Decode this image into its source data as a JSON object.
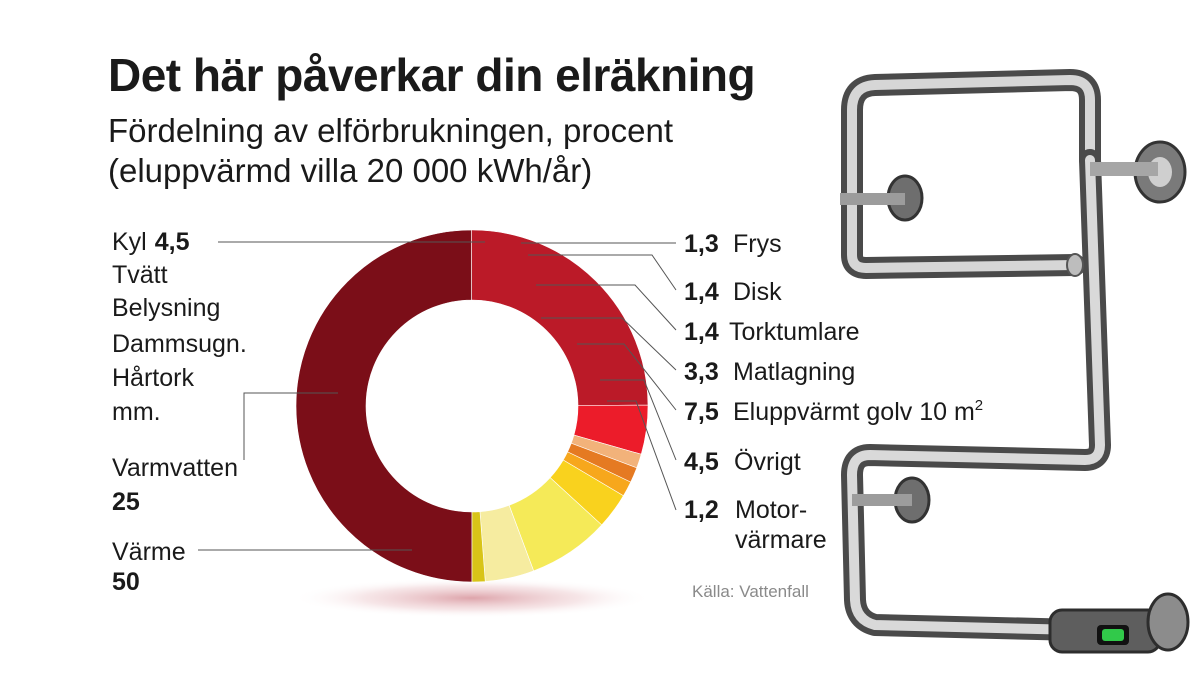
{
  "title": "Det här påverkar din elräkning",
  "subtitle_line1": "Fördelning av elförbrukningen, procent",
  "subtitle_line2": "(eluppvärmd villa 20 000 kWh/år)",
  "source": "Källa: Vattenfall",
  "colors": {
    "Värme": "#7b0e18",
    "Varmvatten": "#bb1a28",
    "Kyl": "#ec1c2a",
    "Frys": "#f2b27a",
    "Disk": "#e57a22",
    "Torktumlare": "#f7a71c",
    "Matlagning": "#f9d21e",
    "Eluppvärmt golv": "#f5ea58",
    "Övrigt": "#f6eca0",
    "Motorvärmare": "#d8c418"
  },
  "chart_data": {
    "type": "pie",
    "donut": true,
    "unit": "procent",
    "slices": [
      {
        "label": "Värme",
        "value": 50
      },
      {
        "label": "Varmvatten",
        "value": 25
      },
      {
        "label": "Kyl",
        "value": 4.5
      },
      {
        "label": "Frys",
        "value": 1.3
      },
      {
        "label": "Disk",
        "value": 1.4
      },
      {
        "label": "Torktumlare",
        "value": 1.4
      },
      {
        "label": "Matlagning",
        "value": 3.3
      },
      {
        "label": "Eluppvärmt golv 10 m²",
        "value": 7.5
      },
      {
        "label": "Övrigt",
        "value": 4.5
      },
      {
        "label": "Motorvärmare",
        "value": 1.2
      }
    ]
  },
  "labels": {
    "kyl": {
      "name": "Kyl",
      "value": "4,5"
    },
    "kyl_extra": [
      "Tvätt",
      "Belysning",
      "Dammsugn.",
      "Hårtork",
      "mm."
    ],
    "varmvatten": {
      "name": "Varmvatten",
      "value": "25"
    },
    "varme": {
      "name": "Värme",
      "value": "50"
    },
    "frys": {
      "name": "Frys",
      "value": "1,3"
    },
    "disk": {
      "name": "Disk",
      "value": "1,4"
    },
    "torktumlare": {
      "name": "Torktumlare",
      "value": "1,4"
    },
    "matlagning": {
      "name": "Matlagning",
      "value": "3,3"
    },
    "golv": {
      "name": "Eluppvärmt golv 10 m",
      "sup": "2",
      "value": "7,5"
    },
    "ovrigt": {
      "name": "Övrigt",
      "value": "4,5"
    },
    "motor": {
      "name1": "Motor-",
      "name2": "värmare",
      "value": "1,2"
    }
  }
}
